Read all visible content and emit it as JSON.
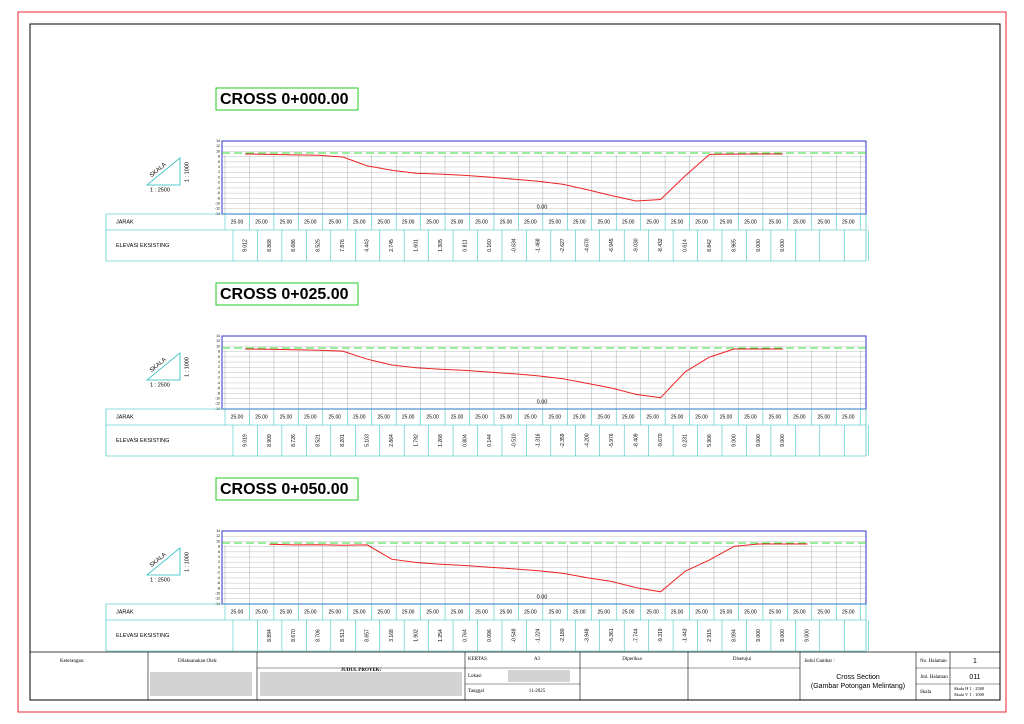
{
  "sheet": {
    "sections": [
      {
        "title": "CROSS 0+000.00",
        "scale_label": "SKALA",
        "scale_h": "1 : 2500",
        "scale_v": "1 : 1000",
        "datum": "0.00",
        "row_distance": "JARAK",
        "row_elevation": "ELEVASI EKSISTING",
        "distances": [
          "25.00",
          "25.00",
          "25.00",
          "25.00",
          "25.00",
          "25.00",
          "25.00",
          "25.00",
          "25.00",
          "25.00",
          "25.00",
          "25.00",
          "25.00",
          "25.00",
          "25.00",
          "25.00",
          "25.00",
          "25.00",
          "25.00",
          "25.00",
          "25.00",
          "25.00",
          "25.00",
          "25.00",
          "25.00",
          "25.00"
        ],
        "elevations": [
          "9.012",
          "8.868",
          "8.686",
          "8.525",
          "7.876",
          "4.443",
          "2.745",
          "1.601",
          "1.305",
          "0.811",
          "0.160",
          "-0.634",
          "-1.468",
          "-2.627",
          "-4.670",
          "-6.945",
          "-9.030",
          "-8.432",
          "0.614",
          "8.842",
          "8.965",
          "9.000",
          "9.000",
          null,
          null,
          null
        ]
      },
      {
        "title": "CROSS 0+025.00",
        "scale_label": "SKALA",
        "scale_h": "1 : 2500",
        "scale_v": "1 : 1000",
        "datum": "0.00",
        "row_distance": "JARAK",
        "row_elevation": "ELEVASI EKSISTING",
        "distances": [
          "25.00",
          "25.00",
          "25.00",
          "25.00",
          "25.00",
          "25.00",
          "25.00",
          "25.00",
          "25.00",
          "25.00",
          "25.00",
          "25.00",
          "25.00",
          "25.00",
          "25.00",
          "25.00",
          "25.00",
          "25.00",
          "25.00",
          "25.00",
          "25.00",
          "25.00",
          "25.00",
          "25.00",
          "25.00",
          "25.00"
        ],
        "elevations": [
          "9.019",
          "8.909",
          "8.726",
          "8.521",
          "8.201",
          "5.103",
          "2.864",
          "1.792",
          "1.268",
          "0.804",
          "0.144",
          "-0.510",
          "-1.316",
          "-2.359",
          "-4.200",
          "-5.976",
          "-8.409",
          "-9.670",
          "0.231",
          "5.906",
          "9.000",
          "9.000",
          "9.000",
          null,
          null,
          null
        ]
      },
      {
        "title": "CROSS 0+050.00",
        "scale_label": "SKALA",
        "scale_h": "1 : 2500",
        "scale_v": "1 : 1000",
        "datum": "0.00",
        "row_distance": "JARAK",
        "row_elevation": "ELEVASI EKSISTING",
        "distances": [
          "25.00",
          "25.00",
          "25.00",
          "25.00",
          "25.00",
          "25.00",
          "25.00",
          "25.00",
          "25.00",
          "25.00",
          "25.00",
          "25.00",
          "25.00",
          "25.00",
          "25.00",
          "25.00",
          "25.00",
          "25.00",
          "25.00",
          "25.00",
          "25.00",
          "25.00",
          "25.00",
          "25.00",
          "25.00",
          "25.00"
        ],
        "elevations": [
          null,
          "8.894",
          "8.670",
          "8.706",
          "8.513",
          "8.657",
          "3.168",
          "1.902",
          "1.254",
          "0.764",
          "0.096",
          "-0.549",
          "-1.224",
          "-2.180",
          "-3.948",
          "-5.361",
          "-7.744",
          "-9.319",
          "-1.443",
          "2.915",
          "8.094",
          "9.000",
          "9.000",
          "9.000",
          null,
          null
        ]
      }
    ],
    "ylim": [
      -14,
      14
    ],
    "yticks": [
      14,
      12,
      10,
      8,
      6,
      4,
      2,
      0,
      -2,
      -4,
      -6,
      -8,
      -10,
      -12,
      -14
    ],
    "title_block": {
      "notes": "Keterangan:",
      "executor": "Dilaksanakan Oleh:",
      "project": "JUDUL PROYEK:",
      "paper_label": "KERTAS",
      "paper": "A3",
      "location_label": "Lokasi",
      "date_label": "Tanggal",
      "date": "11-2025",
      "checked": "Diperiksa",
      "approved": "Disetujui",
      "drawing_title_label": "Judul Gambar :",
      "drawing_title": "Cross Section",
      "drawing_subtitle": "(Gambar Potongan Melintang)",
      "page_no_label": "No. Halaman",
      "page_no": "1",
      "page_count_label": "Jml. Halaman",
      "page_count": "011",
      "scale_label": "Skala",
      "scale_h": "Skala  H 1 : 2500",
      "scale_v": "Skala  V 1 : 1000"
    }
  }
}
